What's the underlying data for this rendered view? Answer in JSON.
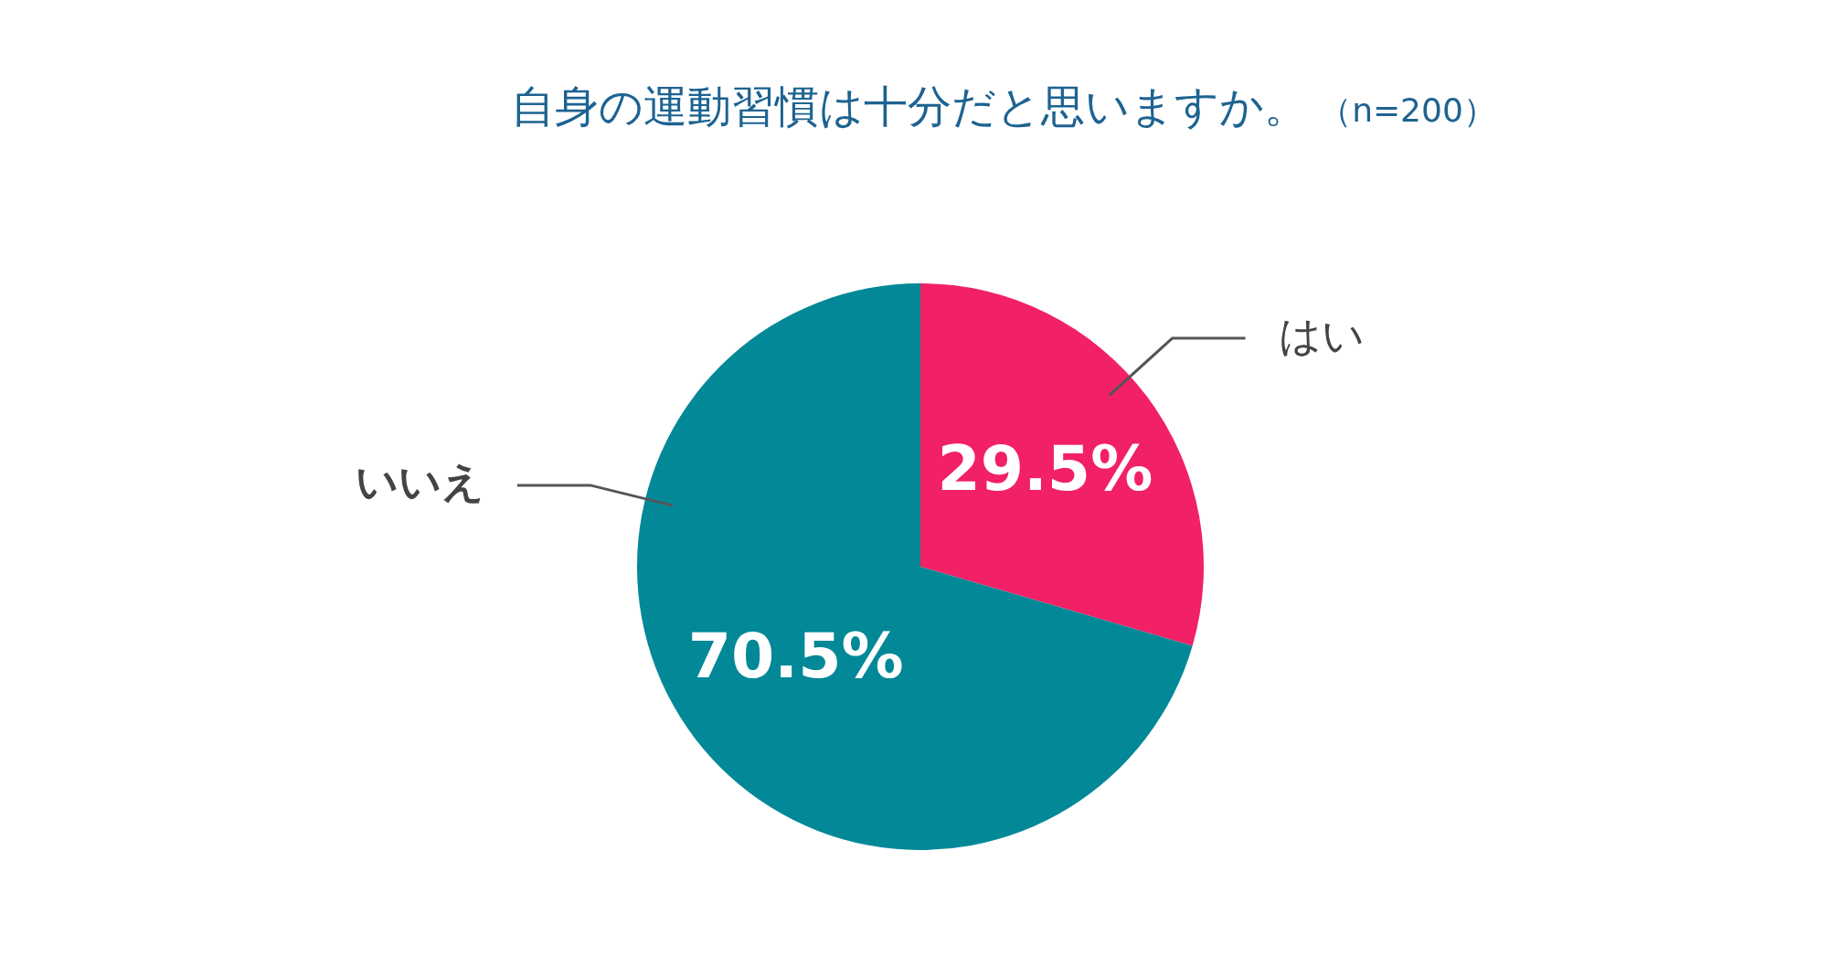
{
  "chart_data": {
    "type": "pie",
    "title": "自身の運動習慣は十分だと思いますか。",
    "subtitle": "（n=200）",
    "categories": [
      "はい",
      "いいえ"
    ],
    "values": [
      29.5,
      70.5
    ],
    "colors": [
      "#f22065",
      "#028897"
    ],
    "value_labels": [
      "29.5%",
      "70.5%"
    ],
    "legend": false
  }
}
